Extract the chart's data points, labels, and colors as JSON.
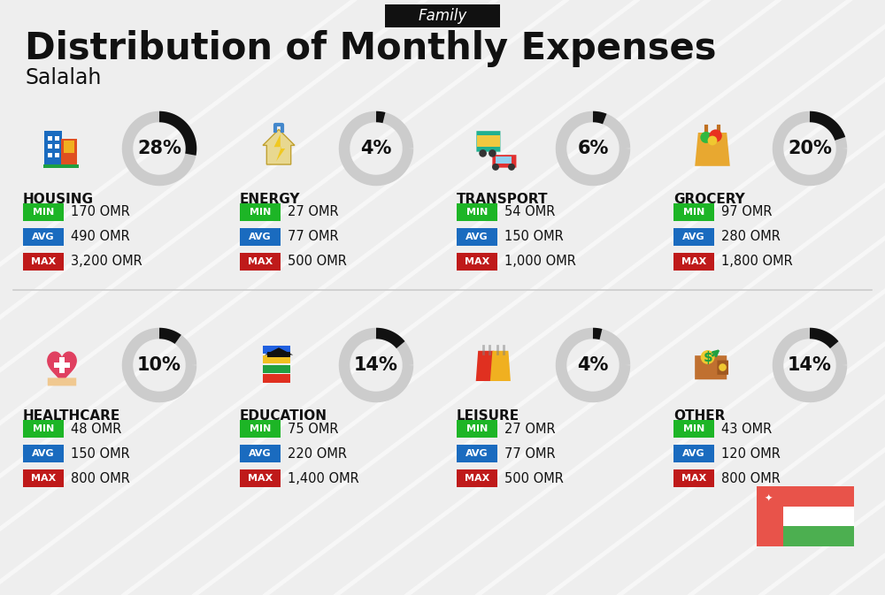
{
  "title": "Distribution of Monthly Expenses",
  "subtitle": "Salalah",
  "family_label": "Family",
  "bg_color": "#eeeeee",
  "categories": [
    {
      "name": "HOUSING",
      "pct": 28,
      "min_val": "170 OMR",
      "avg_val": "490 OMR",
      "max_val": "3,200 OMR",
      "col": 0,
      "row": 0
    },
    {
      "name": "ENERGY",
      "pct": 4,
      "min_val": "27 OMR",
      "avg_val": "77 OMR",
      "max_val": "500 OMR",
      "col": 1,
      "row": 0
    },
    {
      "name": "TRANSPORT",
      "pct": 6,
      "min_val": "54 OMR",
      "avg_val": "150 OMR",
      "max_val": "1,000 OMR",
      "col": 2,
      "row": 0
    },
    {
      "name": "GROCERY",
      "pct": 20,
      "min_val": "97 OMR",
      "avg_val": "280 OMR",
      "max_val": "1,800 OMR",
      "col": 3,
      "row": 0
    },
    {
      "name": "HEALTHCARE",
      "pct": 10,
      "min_val": "48 OMR",
      "avg_val": "150 OMR",
      "max_val": "800 OMR",
      "col": 0,
      "row": 1
    },
    {
      "name": "EDUCATION",
      "pct": 14,
      "min_val": "75 OMR",
      "avg_val": "220 OMR",
      "max_val": "1,400 OMR",
      "col": 1,
      "row": 1
    },
    {
      "name": "LEISURE",
      "pct": 4,
      "min_val": "27 OMR",
      "avg_val": "77 OMR",
      "max_val": "500 OMR",
      "col": 2,
      "row": 1
    },
    {
      "name": "OTHER",
      "pct": 14,
      "min_val": "43 OMR",
      "avg_val": "120 OMR",
      "max_val": "800 OMR",
      "col": 3,
      "row": 1
    }
  ],
  "color_min": "#1db526",
  "color_avg": "#1a6bbf",
  "color_max": "#bf1a1a",
  "color_ring_filled": "#111111",
  "color_ring_empty": "#cccccc",
  "oman_flag_red": "#e8534a",
  "oman_flag_green": "#4caf50",
  "oman_flag_white": "#ffffff",
  "icon_colors": {
    "HOUSING": [
      "#1a6bbf",
      "#e05020",
      "#f0b020"
    ],
    "ENERGY": [
      "#40b8d0",
      "#e8c840",
      "#888888"
    ],
    "TRANSPORT": [
      "#20a060",
      "#e03030",
      "#f0c030"
    ],
    "GROCERY": [
      "#e8a030",
      "#20a040",
      "#e05030"
    ],
    "HEALTHCARE": [
      "#e05060",
      "#ffffff",
      "#20a0c0"
    ],
    "EDUCATION": [
      "#202080",
      "#e05020",
      "#20a040"
    ],
    "LEISURE": [
      "#e05030",
      "#f0b020",
      "#8030a0"
    ],
    "OTHER": [
      "#c07830",
      "#20a040",
      "#404040"
    ]
  }
}
